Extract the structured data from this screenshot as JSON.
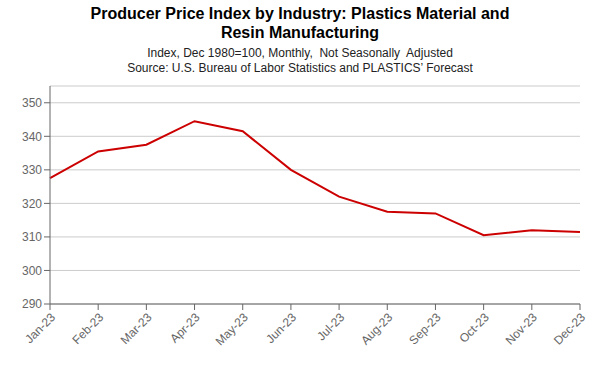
{
  "chart_data": {
    "type": "line",
    "title": "Producer Price Index by Industry: Plastics Material and\nResin Manufacturing",
    "subtitle": "Index, Dec 1980=100, Monthly,  Not Seasonally  Adjusted\nSource: U.S. Bureau of Labor Statistics and PLASTICS’ Forecast",
    "categories": [
      "Jan-23",
      "Feb-23",
      "Mar-23",
      "Apr-23",
      "May-23",
      "Jun-23",
      "Jul-23",
      "Aug-23",
      "Sep-23",
      "Oct-23",
      "Nov-23",
      "Dec-23"
    ],
    "values": [
      327.5,
      335.5,
      337.5,
      344.5,
      341.5,
      330.0,
      322.0,
      317.5,
      317.0,
      310.5,
      312.0,
      311.5
    ],
    "color": "#cc0000",
    "ylim": [
      290,
      355
    ],
    "yticks": [
      290,
      300,
      310,
      320,
      330,
      340,
      350
    ],
    "grid": true
  }
}
